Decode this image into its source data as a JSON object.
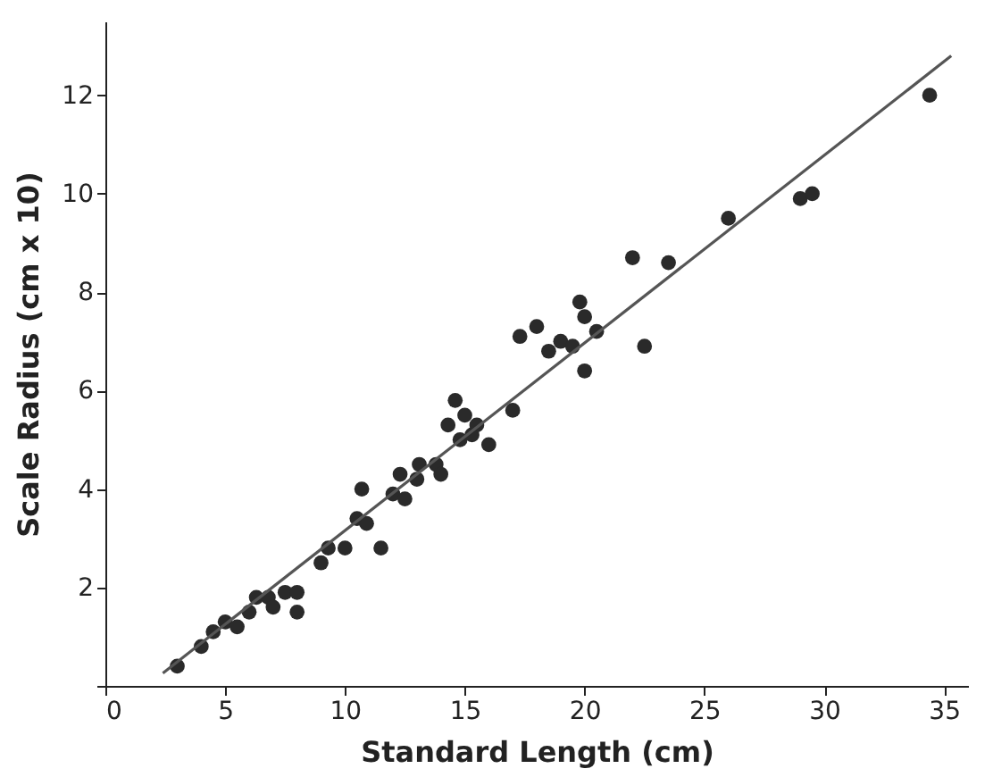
{
  "chart_data": {
    "type": "scatter",
    "xlabel": "Standard Length (cm)",
    "ylabel": "Scale Radius (cm x 10)",
    "xlim": [
      0,
      36
    ],
    "ylim": [
      0,
      13.5
    ],
    "xticks": [
      0,
      5,
      10,
      15,
      20,
      25,
      30,
      35
    ],
    "yticks": [
      {
        "value": 0,
        "label": null
      },
      2,
      4,
      6,
      8,
      10,
      12
    ],
    "grid": false,
    "marker": "circle",
    "series": [
      {
        "color": "#2a2a2a",
        "x": [
          3,
          4,
          4.5,
          5,
          5.5,
          6,
          6.3,
          6.8,
          7,
          7.5,
          8,
          8,
          9,
          9.3,
          10,
          10.5,
          10.7,
          10.9,
          11.5,
          12,
          12.3,
          12.5,
          13,
          13.1,
          13.8,
          14,
          14.3,
          14.6,
          14.8,
          15,
          15.3,
          15.5,
          16,
          17,
          17.3,
          18,
          18.5,
          19,
          19.5,
          19.8,
          20,
          20,
          20.5,
          22,
          22.5,
          23.5,
          26,
          29,
          29.5,
          34.4
        ],
        "values": [
          0.4,
          0.8,
          1.1,
          1.3,
          1.2,
          1.5,
          1.8,
          1.8,
          1.6,
          1.9,
          1.5,
          1.9,
          2.5,
          2.8,
          2.8,
          3.4,
          4,
          3.3,
          2.8,
          3.9,
          4.3,
          3.8,
          4.2,
          4.5,
          4.5,
          4.3,
          5.3,
          5.8,
          5,
          5.5,
          5.1,
          5.3,
          4.9,
          5.6,
          7.1,
          7.3,
          6.8,
          7,
          6.9,
          7.8,
          6.4,
          7.5,
          7.2,
          8.7,
          6.9,
          8.6,
          9.5,
          9.9,
          10,
          12
        ]
      },
      {
        "type": "line",
        "color": "#555555",
        "line_style": "solid",
        "marker": "none",
        "x": [
          2.4,
          35.3
        ],
        "values": [
          0.26,
          12.8
        ]
      }
    ]
  }
}
